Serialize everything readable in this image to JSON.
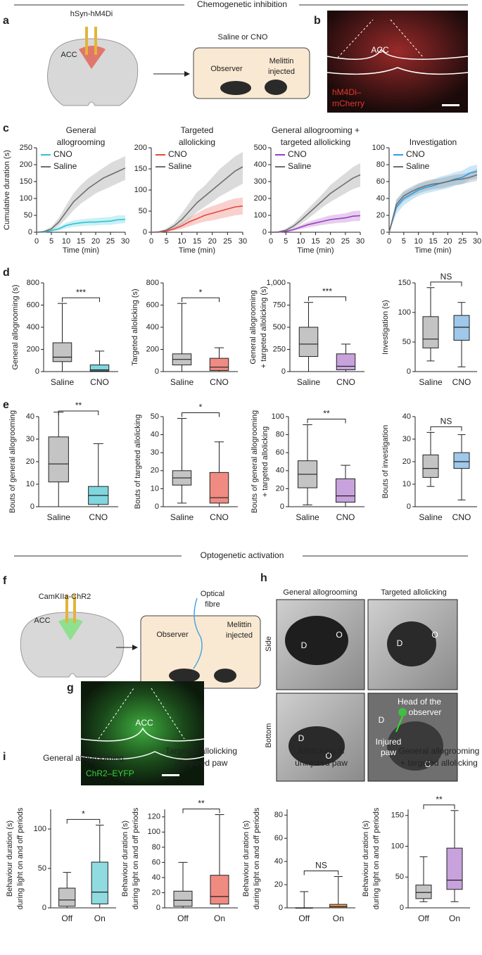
{
  "sections": [
    "Chemogenetic inhibition",
    "Optogenetic activation"
  ],
  "panel_labels": [
    "a",
    "b",
    "c",
    "d",
    "e",
    "f",
    "g",
    "h",
    "i"
  ],
  "schematic_a": {
    "construct": "hSyn-hM4Di",
    "region": "ACC",
    "treatment": "Saline or CNO",
    "observer": "Observer",
    "injected": [
      "Melittin",
      "injected"
    ]
  },
  "image_b": {
    "region": "ACC",
    "stain": [
      "hM4Di–",
      "mCherry"
    ]
  },
  "schematic_f": {
    "construct": "CamKIIa-ChR2",
    "region": "ACC",
    "fibre": [
      "Optical",
      "fibre"
    ],
    "observer": "Observer",
    "injected": [
      "Melittin",
      "injected"
    ]
  },
  "image_g": {
    "region": "ACC",
    "stain": "ChR2–EYFP"
  },
  "photos_h": {
    "columns": [
      "General allogrooming",
      "Targeted allolicking"
    ],
    "rows": [
      "Side",
      "Bottom"
    ],
    "labels": [
      [
        "D",
        "O"
      ],
      [
        "D",
        "O"
      ],
      [
        "D",
        "O"
      ],
      [
        "D",
        "O"
      ]
    ],
    "annotations": [
      [
        "Head of the",
        "observer"
      ],
      [
        "Injured",
        "paw"
      ]
    ]
  },
  "chart_data": [
    {
      "type": "line",
      "title": [
        "General",
        "allogrooming"
      ],
      "ylabel": "Cumulative duration (s)",
      "xlabel": "Time (min)",
      "x": [
        0,
        2.5,
        5,
        7.5,
        10,
        12.5,
        15,
        17.5,
        20,
        22.5,
        25,
        27.5,
        30
      ],
      "xlim": [
        0,
        30
      ],
      "xticks": [
        0,
        5,
        10,
        15,
        20,
        25,
        30
      ],
      "ylim": [
        0,
        250
      ],
      "yticks": [
        0,
        50,
        100,
        150,
        200,
        250
      ],
      "legend": "upper left",
      "series": [
        {
          "name": "CNO",
          "color": "#29c3d4",
          "values": [
            0,
            0,
            5,
            10,
            20,
            25,
            28,
            30,
            30,
            32,
            33,
            37,
            38
          ],
          "lower": [
            0,
            0,
            2,
            5,
            12,
            16,
            18,
            20,
            20,
            22,
            22,
            25,
            27
          ],
          "upper": [
            0,
            1,
            8,
            16,
            28,
            35,
            38,
            40,
            42,
            44,
            45,
            50,
            50
          ]
        },
        {
          "name": "Saline",
          "color": "#6e6e6e",
          "values": [
            0,
            2,
            10,
            30,
            60,
            90,
            110,
            130,
            145,
            160,
            170,
            180,
            190
          ],
          "lower": [
            0,
            1,
            5,
            18,
            40,
            65,
            85,
            100,
            115,
            125,
            135,
            145,
            155
          ],
          "upper": [
            0,
            4,
            16,
            42,
            80,
            115,
            140,
            160,
            175,
            190,
            205,
            215,
            225
          ]
        }
      ]
    },
    {
      "type": "line",
      "title": [
        "Targeted",
        "allolicking"
      ],
      "xlabel": "Time (min)",
      "x": [
        0,
        2.5,
        5,
        7.5,
        10,
        12.5,
        15,
        17.5,
        20,
        22.5,
        25,
        27.5,
        30
      ],
      "xlim": [
        0,
        30
      ],
      "xticks": [
        0,
        5,
        10,
        15,
        20,
        25,
        30
      ],
      "ylim": [
        0,
        200
      ],
      "yticks": [
        0,
        50,
        100,
        150,
        200
      ],
      "legend": "upper left",
      "series": [
        {
          "name": "CNO",
          "color": "#e5483a",
          "values": [
            0,
            0,
            3,
            8,
            15,
            25,
            32,
            40,
            45,
            50,
            55,
            60,
            62
          ],
          "lower": [
            0,
            0,
            1,
            4,
            8,
            14,
            20,
            25,
            28,
            32,
            36,
            40,
            42
          ],
          "upper": [
            0,
            1,
            5,
            12,
            22,
            35,
            45,
            55,
            62,
            68,
            75,
            80,
            82
          ]
        },
        {
          "name": "Saline",
          "color": "#6e6e6e",
          "values": [
            0,
            1,
            5,
            15,
            30,
            50,
            70,
            85,
            100,
            115,
            130,
            145,
            155
          ],
          "lower": [
            0,
            0,
            2,
            8,
            18,
            32,
            48,
            60,
            72,
            85,
            95,
            105,
            115
          ],
          "upper": [
            0,
            2,
            9,
            22,
            45,
            70,
            95,
            110,
            130,
            150,
            165,
            180,
            190
          ]
        }
      ]
    },
    {
      "type": "line",
      "title": [
        "General allogrooming +",
        "targeted allolicking"
      ],
      "xlabel": "Time (min)",
      "x": [
        0,
        2.5,
        5,
        7.5,
        10,
        12.5,
        15,
        17.5,
        20,
        22.5,
        25,
        27.5,
        30
      ],
      "xlim": [
        0,
        30
      ],
      "xticks": [
        0,
        5,
        10,
        15,
        20,
        25,
        30
      ],
      "ylim": [
        0,
        500
      ],
      "yticks": [
        0,
        100,
        200,
        300,
        400,
        500
      ],
      "legend": "upper left",
      "series": [
        {
          "name": "CNO",
          "color": "#9b3dbf",
          "values": [
            0,
            0,
            5,
            15,
            30,
            45,
            55,
            65,
            75,
            80,
            85,
            95,
            98
          ],
          "lower": [
            0,
            0,
            2,
            8,
            18,
            28,
            36,
            44,
            50,
            55,
            58,
            65,
            68
          ],
          "upper": [
            0,
            1,
            8,
            22,
            42,
            62,
            75,
            88,
            100,
            106,
            112,
            125,
            128
          ]
        },
        {
          "name": "Saline",
          "color": "#6e6e6e",
          "values": [
            0,
            2,
            12,
            35,
            70,
            110,
            150,
            190,
            230,
            260,
            290,
            320,
            340
          ],
          "lower": [
            0,
            1,
            6,
            22,
            48,
            80,
            115,
            150,
            180,
            205,
            230,
            255,
            270
          ],
          "upper": [
            0,
            4,
            20,
            50,
            95,
            140,
            185,
            230,
            280,
            315,
            350,
            385,
            410
          ]
        }
      ]
    },
    {
      "type": "line",
      "title": [
        "Investigation"
      ],
      "xlabel": "Time (min)",
      "x": [
        0,
        2.5,
        5,
        7.5,
        10,
        12.5,
        15,
        17.5,
        20,
        22.5,
        25,
        27.5,
        30
      ],
      "xlim": [
        0,
        30
      ],
      "xticks": [
        0,
        5,
        10,
        15,
        20,
        25,
        30
      ],
      "ylim": [
        0,
        100
      ],
      "yticks": [
        0,
        20,
        40,
        60,
        80,
        100
      ],
      "legend": "upper left",
      "series": [
        {
          "name": "CNO",
          "color": "#2f9be0",
          "values": [
            0,
            30,
            40,
            45,
            50,
            53,
            55,
            58,
            60,
            63,
            65,
            70,
            72
          ],
          "lower": [
            0,
            22,
            32,
            38,
            43,
            46,
            48,
            50,
            52,
            55,
            57,
            62,
            64
          ],
          "upper": [
            0,
            38,
            48,
            52,
            57,
            60,
            62,
            66,
            68,
            71,
            73,
            78,
            80
          ]
        },
        {
          "name": "Saline",
          "color": "#6e6e6e",
          "values": [
            0,
            33,
            43,
            48,
            52,
            55,
            57,
            58,
            60,
            62,
            63,
            65,
            68
          ],
          "lower": [
            0,
            27,
            37,
            42,
            46,
            49,
            51,
            52,
            54,
            56,
            57,
            59,
            61
          ],
          "upper": [
            0,
            39,
            49,
            54,
            58,
            61,
            63,
            64,
            66,
            68,
            69,
            71,
            75
          ]
        }
      ]
    },
    {
      "type": "box",
      "ylabel": "General allogrooming (s)",
      "categories": [
        "Saline",
        "CNO"
      ],
      "ylim": [
        0,
        800
      ],
      "yticks": [
        0,
        200,
        400,
        600,
        800
      ],
      "significance": "***",
      "boxes": [
        {
          "min": 0,
          "q1": 90,
          "median": 130,
          "q3": 260,
          "max": 615,
          "color": "#c4c4c4"
        },
        {
          "min": 0,
          "q1": 5,
          "median": 15,
          "q3": 60,
          "max": 185,
          "color": "#7fd6de"
        }
      ]
    },
    {
      "type": "box",
      "ylabel": "Targeted allolicking (s)",
      "categories": [
        "Saline",
        "CNO"
      ],
      "ylim": [
        0,
        800
      ],
      "yticks": [
        0,
        200,
        400,
        600,
        800
      ],
      "significance": "*",
      "boxes": [
        {
          "min": 0,
          "q1": 60,
          "median": 110,
          "q3": 160,
          "max": 615,
          "color": "#c4c4c4"
        },
        {
          "min": 0,
          "q1": 10,
          "median": 40,
          "q3": 120,
          "max": 215,
          "color": "#f08b82"
        }
      ]
    },
    {
      "type": "box",
      "ylabel": [
        "General allogrooming",
        "+ targeted allolicking (s)"
      ],
      "categories": [
        "Saline",
        "CNO"
      ],
      "ylim": [
        0,
        1000
      ],
      "yticks": [
        0,
        250,
        500,
        750,
        {
          "value": 1000,
          "label": "1,000"
        }
      ],
      "significance": "***",
      "boxes": [
        {
          "min": 0,
          "q1": 170,
          "median": 310,
          "q3": 500,
          "max": 780,
          "color": "#c4c4c4"
        },
        {
          "min": 0,
          "q1": 20,
          "median": 60,
          "q3": 200,
          "max": 310,
          "color": "#c7a2dc"
        }
      ]
    },
    {
      "type": "box",
      "ylabel": "Investigation (s)",
      "categories": [
        "Saline",
        "CNO"
      ],
      "ylim": [
        0,
        150
      ],
      "yticks": [
        0,
        50,
        100,
        150
      ],
      "significance": "NS",
      "boxes": [
        {
          "min": 18,
          "q1": 40,
          "median": 55,
          "q3": 93,
          "max": 142,
          "color": "#c4c4c4"
        },
        {
          "min": 8,
          "q1": 53,
          "median": 75,
          "q3": 95,
          "max": 117,
          "color": "#9fc8ea"
        }
      ]
    },
    {
      "type": "box",
      "ylabel": "Bouts of general allogrooming",
      "categories": [
        "Saline",
        "CNO"
      ],
      "ylim": [
        0,
        40
      ],
      "yticks": [
        0,
        10,
        20,
        30,
        40
      ],
      "significance": "**",
      "boxes": [
        {
          "min": 0,
          "q1": 11,
          "median": 19,
          "q3": 31,
          "max": 42,
          "color": "#c4c4c4"
        },
        {
          "min": 0,
          "q1": 1,
          "median": 5,
          "q3": 9,
          "max": 28,
          "color": "#7fd6de"
        }
      ]
    },
    {
      "type": "box",
      "ylabel": "Bouts of targeted allolicking",
      "categories": [
        "Saline",
        "CNO"
      ],
      "ylim": [
        0,
        50
      ],
      "yticks": [
        0,
        10,
        20,
        30,
        40,
        50
      ],
      "significance": "*",
      "boxes": [
        {
          "min": 2,
          "q1": 12,
          "median": 16,
          "q3": 20,
          "max": 49,
          "color": "#c4c4c4"
        },
        {
          "min": 0,
          "q1": 2,
          "median": 5,
          "q3": 19,
          "max": 36,
          "color": "#f08b82"
        }
      ]
    },
    {
      "type": "box",
      "ylabel": [
        "Bouts of general allogrooming",
        "+ targeted allolicking"
      ],
      "categories": [
        "Saline",
        "CNO"
      ],
      "ylim": [
        0,
        100
      ],
      "yticks": [
        0,
        20,
        40,
        60,
        80,
        100
      ],
      "significance": "**",
      "boxes": [
        {
          "min": 2,
          "q1": 21,
          "median": 36,
          "q3": 51,
          "max": 91,
          "color": "#c4c4c4"
        },
        {
          "min": 0,
          "q1": 5,
          "median": 12,
          "q3": 31,
          "max": 46,
          "color": "#c7a2dc"
        }
      ]
    },
    {
      "type": "box",
      "ylabel": "Bouts of investigation",
      "categories": [
        "Saline",
        "CNO"
      ],
      "ylim": [
        0,
        40
      ],
      "yticks": [
        0,
        10,
        20,
        30,
        40
      ],
      "significance": "NS",
      "boxes": [
        {
          "min": 9,
          "q1": 13,
          "median": 17,
          "q3": 23,
          "max": 33,
          "color": "#c4c4c4"
        },
        {
          "min": 3,
          "q1": 17,
          "median": 20,
          "q3": 24,
          "max": 32,
          "color": "#9fc8ea"
        }
      ]
    },
    {
      "type": "box",
      "title": [
        "General allogrooming"
      ],
      "ylabel": [
        "Behaviour duration (s)",
        "during light on and off periods"
      ],
      "categories": [
        "Off",
        "On"
      ],
      "ylim": [
        0,
        125
      ],
      "yticks": [
        0,
        50,
        100
      ],
      "significance": "*",
      "boxes": [
        {
          "min": 0,
          "q1": 2,
          "median": 10,
          "q3": 25,
          "max": 45,
          "color": "#c4c4c4"
        },
        {
          "min": 0,
          "q1": 5,
          "median": 20,
          "q3": 58,
          "max": 105,
          "color": "#8fdbe0"
        }
      ]
    },
    {
      "type": "box",
      "title": [
        "Targeted allolicking",
        "of injured paw"
      ],
      "ylabel": [
        "Behaviour duration (s)",
        "during light on and off periods"
      ],
      "categories": [
        "Off",
        "On"
      ],
      "ylim": [
        0,
        130
      ],
      "yticks": [
        0,
        20,
        40,
        60,
        80,
        100,
        120
      ],
      "significance": "**",
      "boxes": [
        {
          "min": 0,
          "q1": 2,
          "median": 10,
          "q3": 22,
          "max": 60,
          "color": "#c4c4c4"
        },
        {
          "min": 0,
          "q1": 5,
          "median": 15,
          "q3": 43,
          "max": 123,
          "color": "#f08b82"
        }
      ]
    },
    {
      "type": "box",
      "title": [
        "Allolicking of",
        "uninjured paw"
      ],
      "ylabel": [
        "Behaviour duration (s)",
        "during light on and off periods"
      ],
      "categories": [
        "Off",
        "On"
      ],
      "ylim": [
        0,
        85
      ],
      "yticks": [
        0,
        20,
        40,
        60,
        80
      ],
      "significance": "NS",
      "boxes": [
        {
          "min": 0,
          "q1": 0,
          "median": 0,
          "q3": 0,
          "max": 14,
          "color": "#c4c4c4"
        },
        {
          "min": 0,
          "q1": 0,
          "median": 1,
          "q3": 3,
          "max": 27,
          "color": "#e59a5a"
        }
      ]
    },
    {
      "type": "box",
      "title": [
        "General allogrooming",
        "+ targeted allolicking"
      ],
      "ylabel": [
        "Behaviour duration (s)",
        "during light on and off periods"
      ],
      "categories": [
        "Off",
        "On"
      ],
      "ylim": [
        0,
        160
      ],
      "yticks": [
        0,
        50,
        100,
        150
      ],
      "significance": "**",
      "boxes": [
        {
          "min": 10,
          "q1": 15,
          "median": 25,
          "q3": 37,
          "max": 83,
          "color": "#c4c4c4"
        },
        {
          "min": 10,
          "q1": 30,
          "median": 45,
          "q3": 97,
          "max": 158,
          "color": "#c7a2dc"
        }
      ]
    }
  ]
}
